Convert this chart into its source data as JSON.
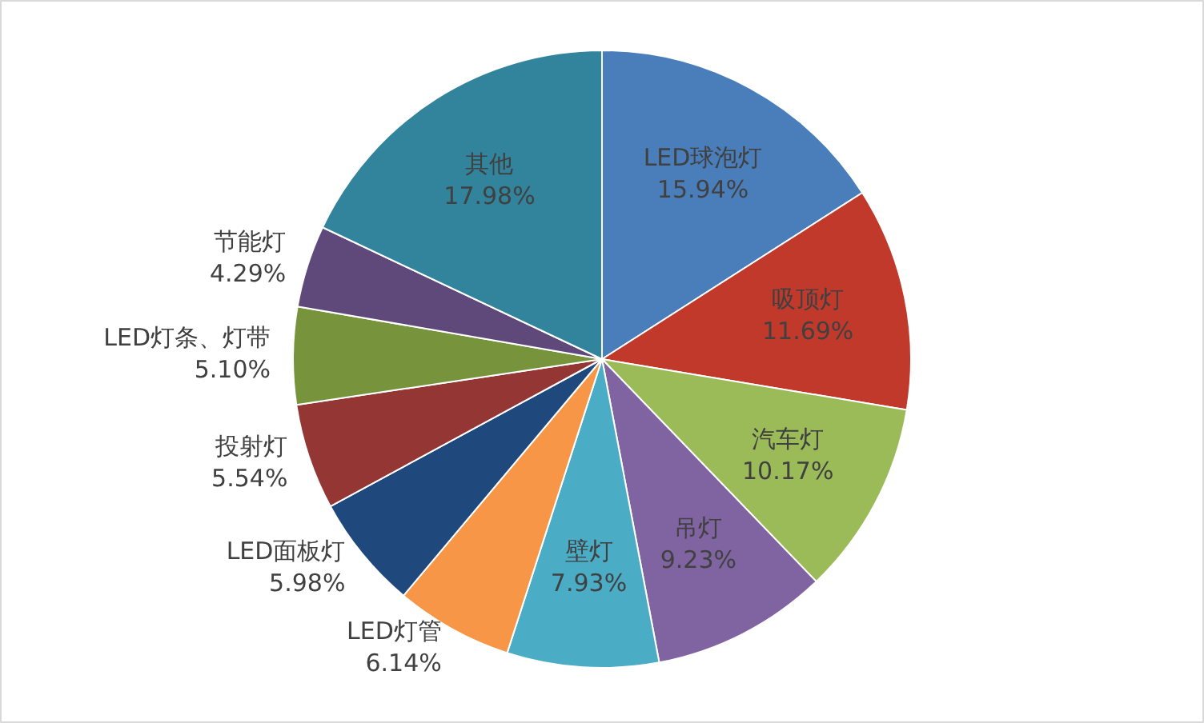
{
  "chart_data": {
    "type": "pie",
    "categories": [
      "LED球泡灯",
      "吸顶灯",
      "汽车灯",
      "吊灯",
      "壁灯",
      "LED灯管",
      "LED面板灯",
      "投射灯",
      "LED灯条、灯带",
      "节能灯",
      "其他"
    ],
    "values": [
      15.94,
      11.69,
      10.17,
      9.23,
      7.93,
      6.14,
      5.98,
      5.54,
      5.1,
      4.29,
      17.98
    ],
    "value_labels": [
      "15.94%",
      "11.69%",
      "10.17%",
      "9.23%",
      "7.93%",
      "6.14%",
      "5.98%",
      "5.54%",
      "5.10%",
      "4.29%",
      "17.98%"
    ],
    "colors": [
      "#4a7ebb",
      "#c0392b",
      "#9bbb59",
      "#8064a2",
      "#4bacc6",
      "#f79646",
      "#1f497d",
      "#943634",
      "#77933c",
      "#5f497a",
      "#31849b"
    ],
    "legend": false
  }
}
